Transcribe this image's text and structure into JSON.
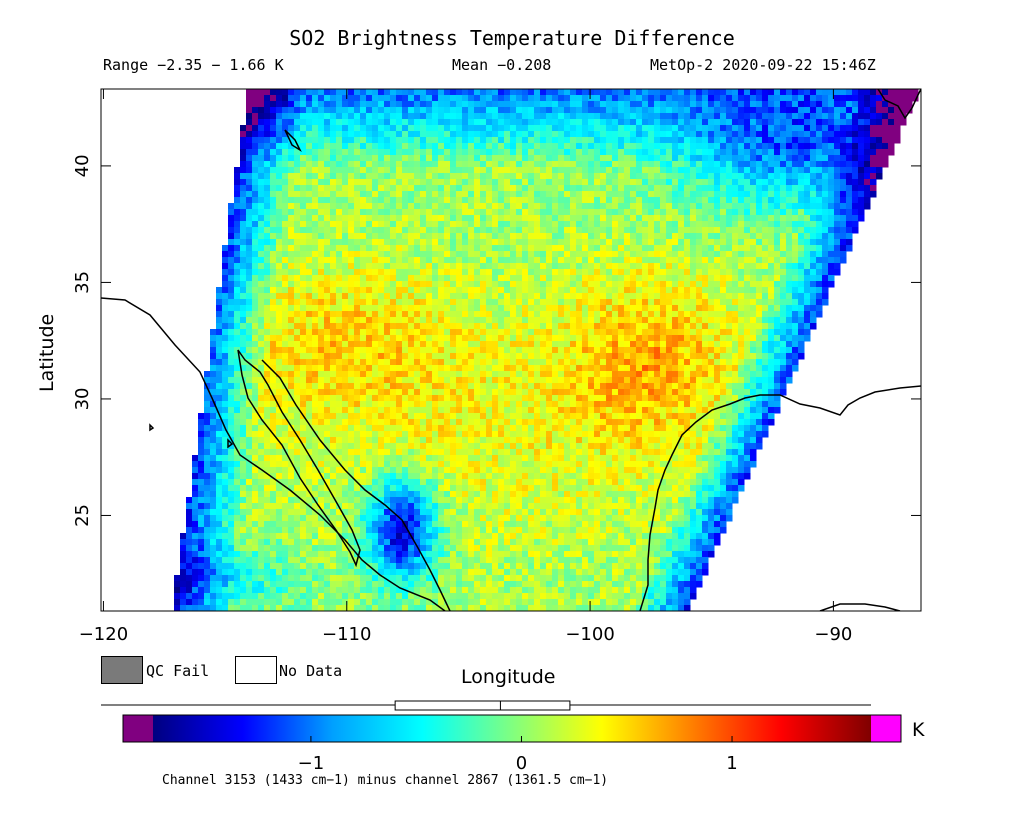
{
  "header": {
    "title": "SO2 Brightness Temperature Difference",
    "range": "Range −2.35 − 1.66 K",
    "mean": "Mean −0.208",
    "satellite_time": "MetOp-2 2020-09-22 15:46Z"
  },
  "axes": {
    "xlabel": "Longitude",
    "ylabel": "Latitude",
    "x_ticks": [
      {
        "value": -120,
        "label": "−120"
      },
      {
        "value": -110,
        "label": "−110"
      },
      {
        "value": -100,
        "label": "−100"
      },
      {
        "value": -90,
        "label": "−90"
      }
    ],
    "y_ticks": [
      {
        "value": 25,
        "label": "25"
      },
      {
        "value": 30,
        "label": "30"
      },
      {
        "value": 35,
        "label": "35"
      },
      {
        "value": 40,
        "label": "40"
      }
    ],
    "lon_range": [
      -120.1,
      -86.4
    ],
    "lat_range": [
      20.9,
      43.3
    ]
  },
  "legend": {
    "qc_fail": "QC Fail",
    "no_data": "No Data",
    "qc_color": "#7a7a7a"
  },
  "colorbar": {
    "min": -1.75,
    "max": 1.66,
    "ticks": [
      {
        "value": -1,
        "label": "−1"
      },
      {
        "value": 0,
        "label": "0"
      },
      {
        "value": 1,
        "label": "1"
      }
    ],
    "unit": "K",
    "under_color": "#800080",
    "over_color": "#ff00ff",
    "stops": [
      "#000080",
      "#0000ff",
      "#00a0ff",
      "#00ffff",
      "#80ff80",
      "#ffff00",
      "#ff8000",
      "#ff0000",
      "#800000"
    ],
    "box_stats": {
      "whisker_low": -1.75,
      "q1": -0.6,
      "median": -0.1,
      "q3": 0.23,
      "whisker_high": 1.66
    }
  },
  "footer": {
    "channel_note": "Channel 3153 (1433 cm−1) minus channel 2867 (1361.5 cm−1)"
  }
}
